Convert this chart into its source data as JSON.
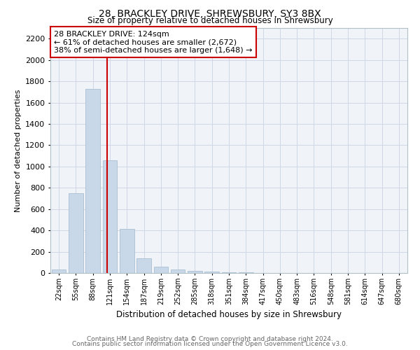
{
  "title": "28, BRACKLEY DRIVE, SHREWSBURY, SY3 8BX",
  "subtitle": "Size of property relative to detached houses in Shrewsbury",
  "xlabel": "Distribution of detached houses by size in Shrewsbury",
  "ylabel": "Number of detached properties",
  "annotation_line1": "28 BRACKLEY DRIVE: 124sqm",
  "annotation_line2": "← 61% of detached houses are smaller (2,672)",
  "annotation_line3": "38% of semi-detached houses are larger (1,648) →",
  "bar_color": "#c8d8e8",
  "bar_edge_color": "#a0b8cc",
  "marker_color": "#cc0000",
  "categories": [
    "22sqm",
    "55sqm",
    "88sqm",
    "121sqm",
    "154sqm",
    "187sqm",
    "219sqm",
    "252sqm",
    "285sqm",
    "318sqm",
    "351sqm",
    "384sqm",
    "417sqm",
    "450sqm",
    "483sqm",
    "516sqm",
    "548sqm",
    "581sqm",
    "614sqm",
    "647sqm",
    "680sqm"
  ],
  "values": [
    30,
    750,
    1730,
    1060,
    415,
    140,
    60,
    35,
    20,
    12,
    8,
    5,
    3,
    0,
    0,
    0,
    0,
    0,
    0,
    0,
    0
  ],
  "ylim": [
    0,
    2300
  ],
  "yticks": [
    0,
    200,
    400,
    600,
    800,
    1000,
    1200,
    1400,
    1600,
    1800,
    2000,
    2200
  ],
  "footer_line1": "Contains HM Land Registry data © Crown copyright and database right 2024.",
  "footer_line2": "Contains public sector information licensed under the Open Government Licence v3.0.",
  "marker_bar_index": 2.85,
  "grid_color": "#d0d8e8",
  "background_color": "#f0f4f8"
}
